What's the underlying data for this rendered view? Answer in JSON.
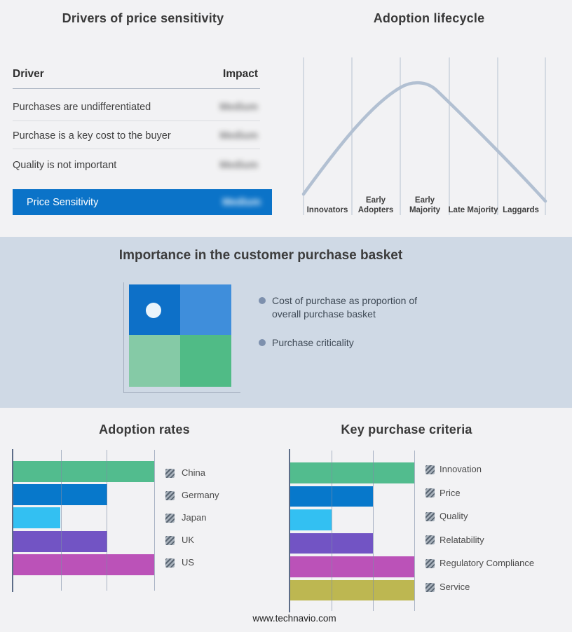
{
  "drivers_panel": {
    "title": "Drivers of price sensitivity",
    "header": {
      "driver": "Driver",
      "impact": "Impact"
    },
    "rows": [
      {
        "driver": "Purchases are undifferentiated",
        "impact": "Medium"
      },
      {
        "driver": "Purchase is a key cost to the buyer",
        "impact": "Medium"
      },
      {
        "driver": "Quality is not important",
        "impact": "Medium"
      }
    ],
    "highlight": {
      "label": "Price Sensitivity",
      "impact": "Medium",
      "color": "#0b73c8"
    }
  },
  "lifecycle": {
    "curve_color": "#b2c0d2",
    "grid_color": "#b6c1d1"
  },
  "basket": {
    "title": "Importance in the customer purchase basket",
    "bullets": [
      [
        "Cost of purchase as proportion of",
        "overall purchase basket"
      ],
      [
        "Purchase criticality"
      ]
    ],
    "matrix": {
      "top_left": "#0d70c8",
      "top_right": "#3f8edb",
      "bottom_left": "#85caa6",
      "bottom_right": "#50bb86",
      "dot": "#eaf4fb"
    }
  },
  "chart_data": [
    {
      "type": "bar",
      "title": "Adoption rates",
      "orientation": "horizontal",
      "categories": [
        "China",
        "Germany",
        "Japan",
        "UK",
        "US"
      ],
      "values": [
        3,
        2,
        1,
        2,
        3
      ],
      "xlim": [
        0,
        3
      ],
      "grid": true,
      "legend_position": "right",
      "colors": [
        "#52bc8e",
        "#0778cb",
        "#33c0f2",
        "#7254c4",
        "#bb52b8"
      ]
    },
    {
      "type": "bar",
      "title": "Key purchase criteria",
      "orientation": "horizontal",
      "categories": [
        "Innovation",
        "Price",
        "Quality",
        "Relatability",
        "Regulatory Compliance",
        "Service"
      ],
      "values": [
        3,
        2,
        1,
        2,
        3,
        3
      ],
      "xlim": [
        0,
        3
      ],
      "grid": true,
      "legend_position": "right",
      "colors": [
        "#52bc8e",
        "#0778cb",
        "#33c0f2",
        "#7254c4",
        "#bb52b8",
        "#bdb751"
      ]
    },
    {
      "type": "line",
      "title": "Adoption lifecycle",
      "x_categories": [
        "Innovators",
        "Early Adopters",
        "Early Majority",
        "Late Majority",
        "Laggards"
      ],
      "curve_points_norm": [
        [
          0.0,
          0.05
        ],
        [
          0.2,
          0.45
        ],
        [
          0.4,
          0.92
        ],
        [
          0.48,
          1.0
        ],
        [
          0.6,
          0.82
        ],
        [
          0.8,
          0.42
        ],
        [
          1.0,
          0.03
        ]
      ],
      "ylabel": "",
      "xlabel": "",
      "annotation": "bell-shaped adoption curve peaking at Early Majority"
    }
  ],
  "footer": {
    "text": "www.technavio.com"
  }
}
